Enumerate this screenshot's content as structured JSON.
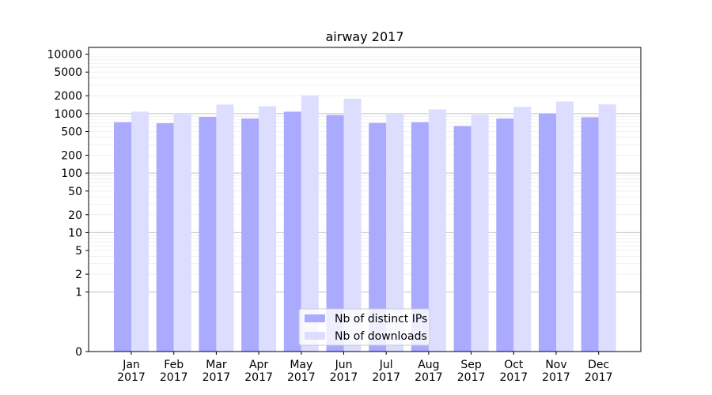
{
  "chart_data": {
    "type": "bar",
    "title": "airway 2017",
    "xlabel": "",
    "ylabel": "",
    "categories": [
      "Jan\n2017",
      "Feb\n2017",
      "Mar\n2017",
      "Apr\n2017",
      "May\n2017",
      "Jun\n2017",
      "Jul\n2017",
      "Aug\n2017",
      "Sep\n2017",
      "Oct\n2017",
      "Nov\n2017",
      "Dec\n2017"
    ],
    "series": [
      {
        "name": "Nb of distinct IPs",
        "color": "#aaaaff",
        "values": [
          720,
          690,
          880,
          830,
          1080,
          950,
          700,
          720,
          620,
          830,
          1000,
          870
        ]
      },
      {
        "name": "Nb of downloads",
        "color": "#ddddff",
        "values": [
          1080,
          1000,
          1420,
          1330,
          2030,
          1780,
          1000,
          1180,
          960,
          1300,
          1600,
          1430
        ]
      }
    ],
    "yscale": "symlog",
    "ylim": [
      0,
      13000
    ],
    "yticks": [
      0,
      1,
      2,
      5,
      10,
      20,
      50,
      100,
      200,
      500,
      1000,
      2000,
      5000,
      10000
    ],
    "ytick_labels": [
      "0",
      "1",
      "2",
      "5",
      "10",
      "20",
      "50",
      "100",
      "200",
      "500",
      "1000",
      "2000",
      "5000",
      "10000"
    ],
    "grid": true,
    "legend_position": "lower-center"
  }
}
